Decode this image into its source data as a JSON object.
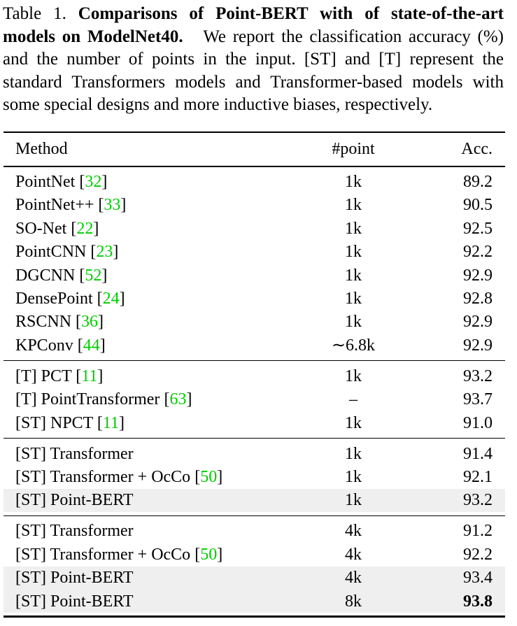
{
  "caption": {
    "label": "Table 1.",
    "title": "Comparisons of Point-BERT with of state-of-the-art models on ModelNet40.",
    "text": "We report the classification accuracy (%) and the number of points in the input. [ST] and [T] represent the standard Transformers models and Transformer-based models with some special designs and more inductive biases, respectively."
  },
  "table": {
    "header": [
      "Method",
      "#point",
      "Acc."
    ],
    "brackets": [
      "[",
      "]"
    ],
    "groups": [
      [
        {
          "method": "PointNet",
          "ref": "32",
          "points": "1k",
          "acc": "89.2"
        },
        {
          "method": "PointNet++",
          "ref": "33",
          "points": "1k",
          "acc": "90.5"
        },
        {
          "method": "SO-Net",
          "ref": "22",
          "points": "1k",
          "acc": "92.5"
        },
        {
          "method": "PointCNN",
          "ref": "23",
          "points": "1k",
          "acc": "92.2"
        },
        {
          "method": "DGCNN",
          "ref": "52",
          "points": "1k",
          "acc": "92.9"
        },
        {
          "method": "DensePoint",
          "ref": "24",
          "points": "1k",
          "acc": "92.8"
        },
        {
          "method": "RSCNN",
          "ref": "36",
          "points": "1k",
          "acc": "92.9"
        },
        {
          "method": "KPConv",
          "ref": "44",
          "points": "∼6.8k",
          "acc": "92.9"
        }
      ],
      [
        {
          "method": "[T] PCT",
          "ref": "11",
          "points": "1k",
          "acc": "93.2"
        },
        {
          "method": "[T] PointTransformer",
          "ref": "63",
          "points": "–",
          "acc": "93.7"
        },
        {
          "method": "[ST] NPCT",
          "ref": "11",
          "points": "1k",
          "acc": "91.0"
        }
      ],
      [
        {
          "method": "[ST] Transformer",
          "points": "1k",
          "acc": "91.4"
        },
        {
          "method": "[ST] Transformer + OcCo",
          "ref": "50",
          "points": "1k",
          "acc": "92.1"
        },
        {
          "method": "[ST] Point-BERT",
          "points": "1k",
          "acc": "93.2",
          "shaded": true
        }
      ],
      [
        {
          "method": "[ST] Transformer",
          "points": "4k",
          "acc": "91.2"
        },
        {
          "method": "[ST] Transformer + OcCo",
          "ref": "50",
          "points": "4k",
          "acc": "92.2"
        },
        {
          "method": "[ST] Point-BERT",
          "points": "4k",
          "acc": "93.4",
          "shaded": true
        },
        {
          "method": "[ST] Point-BERT",
          "points": "8k",
          "acc": "93.8",
          "shaded": true,
          "bold": true
        }
      ]
    ]
  }
}
